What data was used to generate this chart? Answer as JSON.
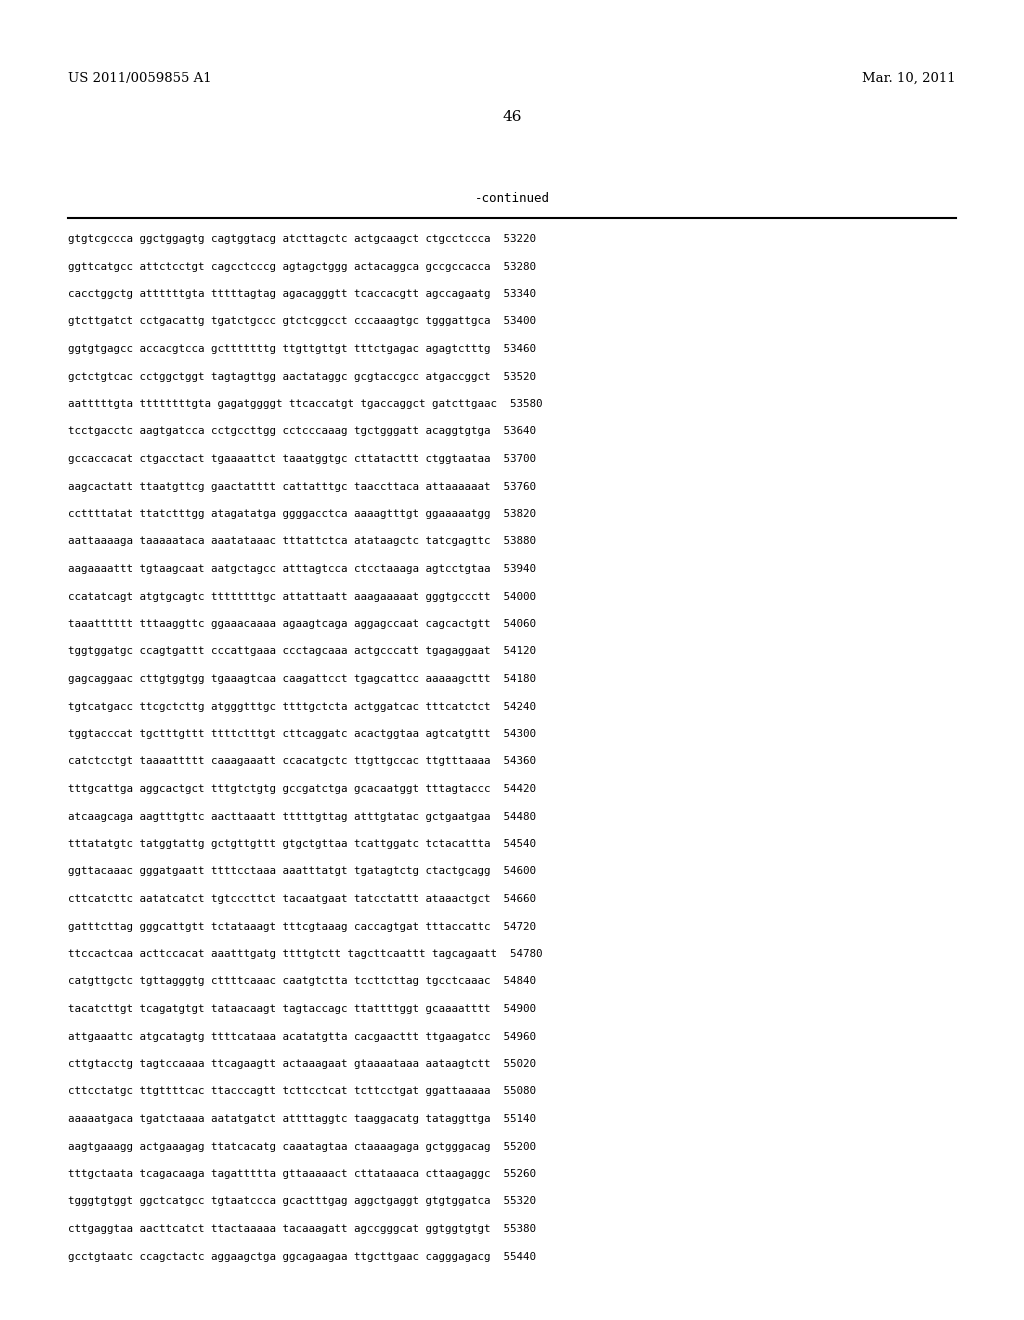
{
  "header_left": "US 2011/0059855 A1",
  "header_right": "Mar. 10, 2011",
  "page_number": "46",
  "continued_label": "-continued",
  "background_color": "#ffffff",
  "text_color": "#000000",
  "font_size_header": 9.5,
  "font_size_page": 11,
  "font_size_continued": 9,
  "font_size_sequence": 7.8,
  "sequence_lines": [
    "gtgtcgccca ggctggagtg cagtggtacg atcttagctc actgcaagct ctgcctccca  53220",
    "ggttcatgcc attctcctgt cagcctcccg agtagctggg actacaggca gccgccacca  53280",
    "cacctggctg attttttgta tttttagtag agacagggtt tcaccacgtt agccagaatg  53340",
    "gtcttgatct cctgacattg tgatctgccc gtctcggcct cccaaagtgc tgggattgca  53400",
    "ggtgtgagcc accacgtcca gctttttttg ttgttgttgt tttctgagac agagtctttg  53460",
    "gctctgtcac cctggctggt tagtagttgg aactataggc gcgtaccgcc atgaccggct  53520",
    "aatttttgta ttttttttgta gagatggggt ttcaccatgt tgaccaggct gatcttgaac  53580",
    "tcctgacctc aagtgatcca cctgccttgg cctcccaaag tgctgggatt acaggtgtga  53640",
    "gccaccacat ctgacctact tgaaaattct taaatggtgc cttatacttt ctggtaataa  53700",
    "aagcactatt ttaatgttcg gaactatttt cattatttgc taaccttaca attaaaaaat  53760",
    "ccttttatat ttatctttgg atagatatga ggggacctca aaaagtttgt ggaaaaatgg  53820",
    "aattaaaaga taaaaataca aaatataaac tttattctca atataagctc tatcgagttc  53880",
    "aagaaaattt tgtaagcaat aatgctagcc atttagtcca ctcctaaaga agtcctgtaa  53940",
    "ccatatcagt atgtgcagtc ttttttttgc attattaatt aaagaaaaat gggtgccctt  54000",
    "taaatttttt tttaaggttc ggaaacaaaa agaagtcaga aggagccaat cagcactgtt  54060",
    "tggtggatgc ccagtgattt cccattgaaa ccctagcaaa actgcccatt tgagaggaat  54120",
    "gagcaggaac cttgtggtgg tgaaagtcaa caagattcct tgagcattcc aaaaagcttt  54180",
    "tgtcatgacc ttcgctcttg atgggtttgc ttttgctcta actggatcac tttcatctct  54240",
    "tggtacccat tgctttgttt ttttctttgt cttcaggatc acactggtaa agtcatgttt  54300",
    "catctcctgt taaaattttt caaagaaatt ccacatgctc ttgttgccac ttgtttaaaa  54360",
    "tttgcattga aggcactgct tttgtctgtg gccgatctga gcacaatggt tttagtaccc  54420",
    "atcaagcaga aagtttgttc aacttaaatt tttttgttag atttgtatac gctgaatgaa  54480",
    "tttatatgtc tatggtattg gctgttgttt gtgctgttaa tcattggatc tctacattta  54540",
    "ggttacaaac gggatgaatt ttttcctaaa aaatttatgt tgatagtctg ctactgcagg  54600",
    "cttcatcttc aatatcatct tgtcccttct tacaatgaat tatcctattt ataaactgct  54660",
    "gatttcttag gggcattgtt tctataaagt tttcgtaaag caccagtgat tttaccattc  54720",
    "ttccactcaa acttccacat aaatttgatg ttttgtctt tagcttcaattt tagcagaatt  54780",
    "catgttgctc tgttagggtg cttttcaaac caatgtctta tccttcttag tgcctcaaac  54840",
    "tacatcttgt tcagatgtgt tataacaagt tagtaccagc ttattttggt gcaaaatttt  54900",
    "attgaaattc atgcatagtg ttttcataaa acatatgtta cacgaacttt ttgaagatcc  54960",
    "cttgtacctg tagtccaaaa ttcagaagtt actaaagaat gtaaaataaa aataagtctt  55020",
    "cttcctatgc ttgttttcac ttacccagtt tcttcctcat tcttcctgat ggattaaaaa  55080",
    "aaaaatgaca tgatctaaaa aatatgatct attttaggtc taaggacatg tataggttga  55140",
    "aagtgaaagg actgaaagag ttatcacatg caaatagtaa ctaaaagaga gctgggacag  55200",
    "tttgctaata tcagacaaga tagattttta gttaaaaact cttataaaca cttaagaggc  55260",
    "tgggtgtggt ggctcatgcc tgtaatccca gcactttgag aggctgaggt gtgtggatca  55320",
    "cttgaggtaa aacttcatct ttactaaaaa tacaaagatt agccgggcat ggtggtgtgt  55380",
    "gcctgtaatc ccagctactc aggaagctga ggcagaagaa ttgcttgaac cagggagacg  55440"
  ]
}
